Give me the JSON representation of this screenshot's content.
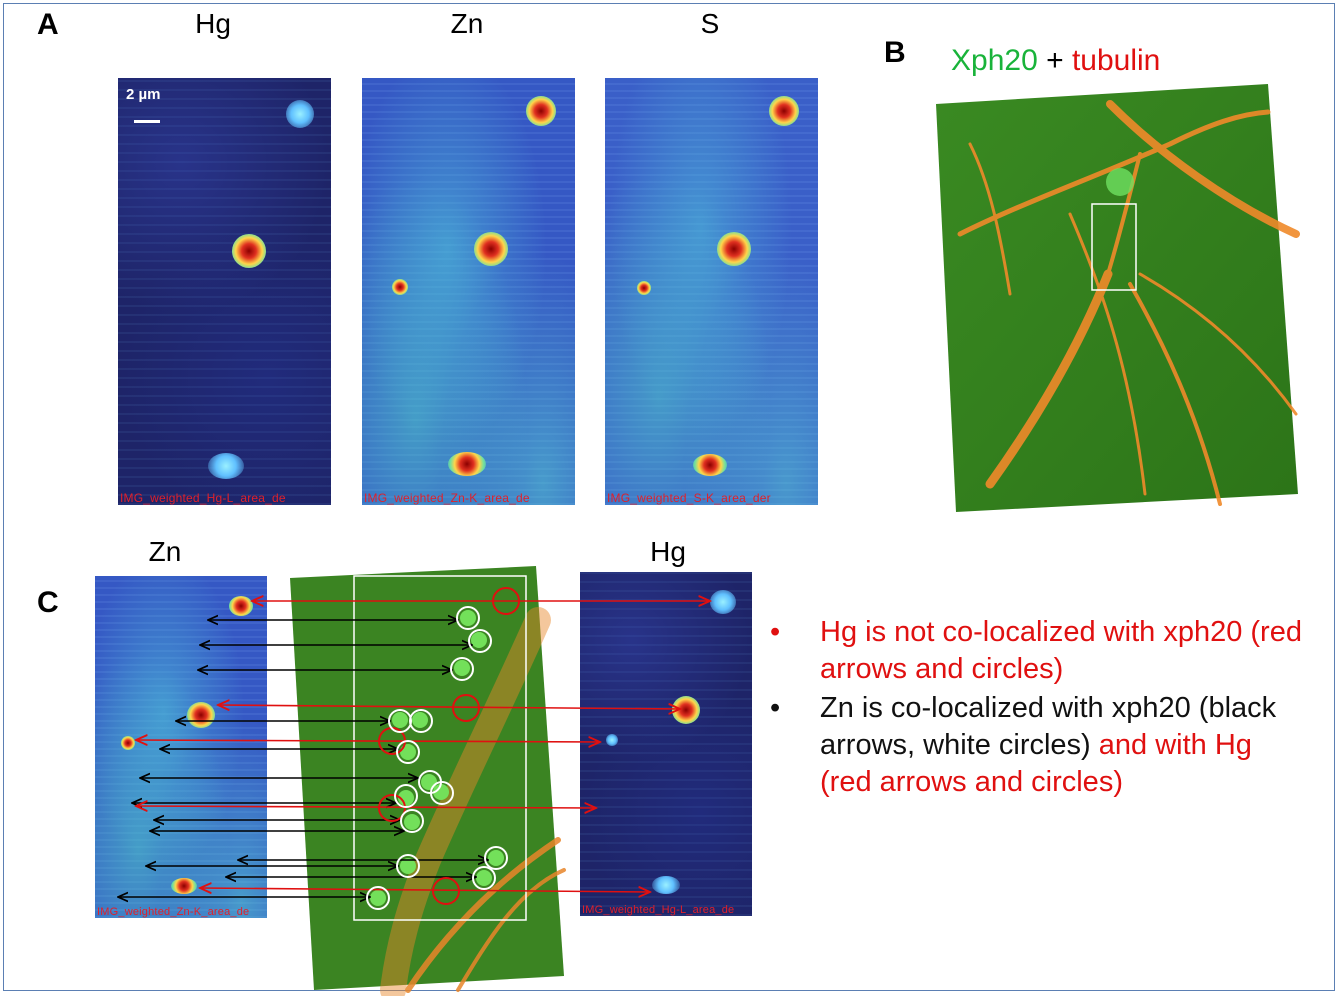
{
  "panels": {
    "a": {
      "letter": "A",
      "maps": [
        {
          "title": "Hg",
          "caption": "IMG_weighted_Hg-L_area_de"
        },
        {
          "title": "Zn",
          "caption": "IMG_weighted_Zn-K_area_de"
        },
        {
          "title": "S",
          "caption": "IMG_weighted_S-K_area_der"
        }
      ],
      "scalebar": "2 µm"
    },
    "b": {
      "letter": "B",
      "title_green": "Xph20",
      "title_plus": " + ",
      "title_red": "tubulin"
    },
    "c": {
      "letter": "C",
      "zn_title": "Zn",
      "hg_title": "Hg",
      "zn_caption": "IMG_weighted_Zn-K_area_de",
      "hg_caption": "IMG_weighted_Hg-L_area_de"
    }
  },
  "bullets": {
    "b1_red": "Hg is not co-localized with xph20 (red arrows and circles)",
    "b2_black": "Zn is co-localized with xph20 (black arrows, white circles)",
    "b2_red": " and with Hg (red arrows and circles)",
    "dot": "•"
  },
  "colors": {
    "red": "#e01010",
    "green": "#19b33a",
    "frame": "#5b7fb3"
  }
}
